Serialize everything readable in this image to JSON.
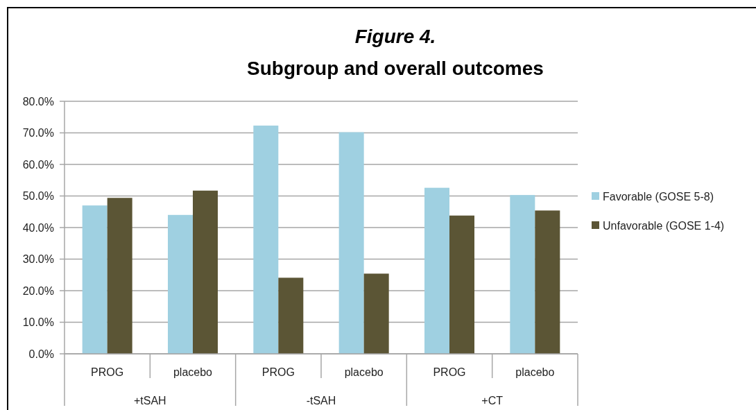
{
  "chart_data": {
    "type": "bar",
    "title": "Figure 4.",
    "subtitle": "Subgroup and overall outcomes",
    "categories": [
      "PROG",
      "placebo",
      "PROG",
      "placebo",
      "PROG",
      "placebo"
    ],
    "annotations": [
      "+tSAH",
      "-tSAH",
      "+CT"
    ],
    "series": [
      {
        "name": "Favorable (GOSE 5-8)",
        "color": "#9fd0e1",
        "values": [
          47.0,
          44.0,
          72.3,
          70.2,
          52.6,
          50.3
        ]
      },
      {
        "name": "Unfavorable (GOSE 1-4)",
        "color": "#5b5535",
        "values": [
          49.4,
          51.7,
          24.1,
          25.4,
          43.8,
          45.4
        ]
      }
    ],
    "ylim": [
      0,
      80
    ],
    "yticks": [
      {
        "value": 0,
        "label": "0.0%"
      },
      {
        "value": 10,
        "label": "10.0%"
      },
      {
        "value": 20,
        "label": "20.0%"
      },
      {
        "value": 30,
        "label": "30.0%"
      },
      {
        "value": 40,
        "label": "40.0%"
      },
      {
        "value": 50,
        "label": "50.0%"
      },
      {
        "value": 60,
        "label": "60.0%"
      },
      {
        "value": 70,
        "label": "70.0%"
      },
      {
        "value": 80,
        "label": "80.0%"
      }
    ],
    "grid": "y",
    "legend": "right"
  }
}
